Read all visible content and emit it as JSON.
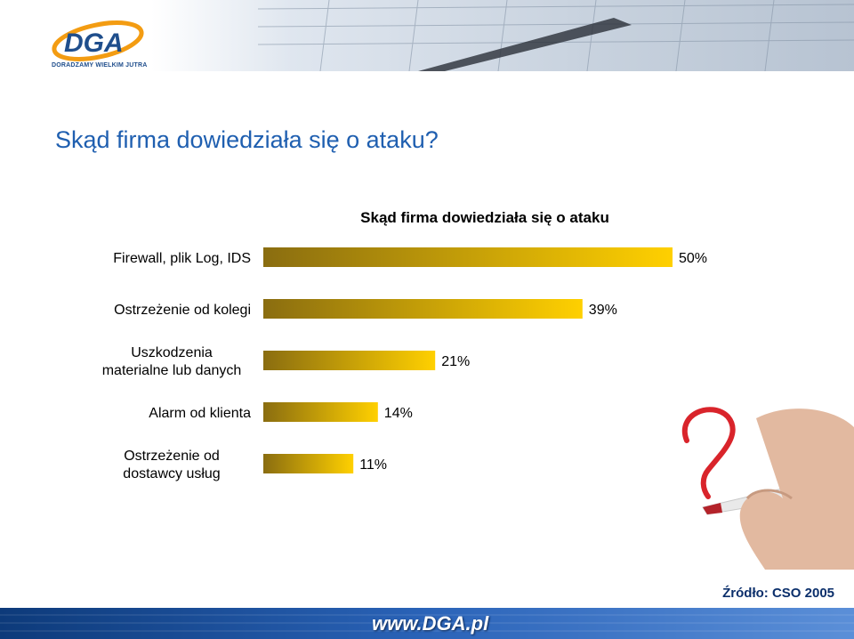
{
  "logo": {
    "brand": "DGA",
    "tagline": "DORADZAMY WIELKIM JUTRA"
  },
  "slide_title": "Skąd firma dowiedziała się o ataku?",
  "chart_data": {
    "type": "bar",
    "orientation": "horizontal",
    "title": "Skąd firma dowiedziała się o ataku",
    "categories": [
      "Firewall, plik Log, IDS",
      "Ostrzeżenie od kolegi",
      "Uszkodzenia materialne lub danych",
      "Alarm od klienta",
      "Ostrzeżenie od dostawcy usług"
    ],
    "category_lines": [
      [
        "Firewall, plik Log, IDS"
      ],
      [
        "Ostrzeżenie od kolegi"
      ],
      [
        "Uszkodzenia",
        "materialne lub danych"
      ],
      [
        "Alarm od klienta"
      ],
      [
        "Ostrzeżenie od",
        "dostawcy usług"
      ]
    ],
    "values": [
      50,
      39,
      21,
      14,
      11
    ],
    "value_labels": [
      "50%",
      "39%",
      "21%",
      "14%",
      "11%"
    ],
    "xlim": [
      0,
      50
    ],
    "grid": false,
    "bar_gradient": [
      "#8a6d10",
      "#ffd000"
    ]
  },
  "source_note": "Źródło: CSO 2005",
  "footer": {
    "url": "www.DGA.pl",
    "color_left": "#0d3a7a",
    "color_right": "#5b8fd8"
  }
}
